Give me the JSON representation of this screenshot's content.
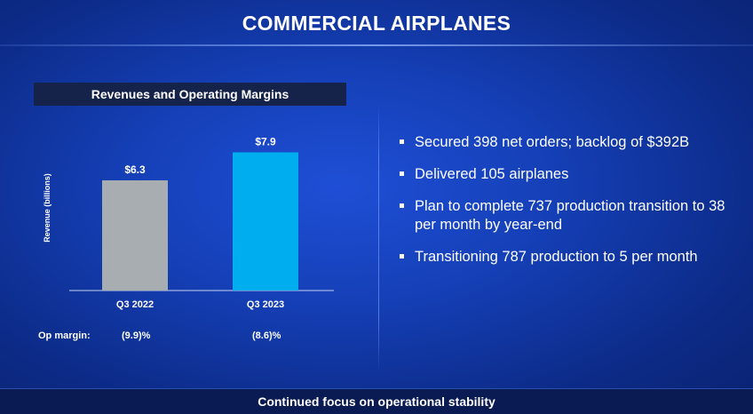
{
  "slide": {
    "title": "COMMERCIAL AIRPLANES",
    "footer": "Continued focus on operational stability"
  },
  "chart_header": "Revenues and Operating Margins",
  "bullets": [
    "Secured 398 net orders; backlog of $392B",
    "Delivered 105 airplanes",
    "Plan to complete 737 production transition to 38 per month by year-end",
    "Transitioning 787 production to 5 per month"
  ],
  "op_margin": {
    "label": "Op margin:",
    "values": [
      "(9.9)%",
      "(8.6)%"
    ]
  },
  "colors": {
    "bar_q3_2022": "#a7adb0",
    "bar_q3_2023": "#00aeef"
  },
  "chart_data": {
    "type": "bar",
    "title": "Revenues and Operating Margins",
    "ylabel": "Revenue (billions)",
    "xlabel": "",
    "categories": [
      "Q3 2022",
      "Q3 2023"
    ],
    "values": [
      6.3,
      7.9
    ],
    "data_labels": [
      "$6.3",
      "$7.9"
    ],
    "ylim": [
      0,
      9.5
    ],
    "grid": false,
    "legend": "none"
  }
}
